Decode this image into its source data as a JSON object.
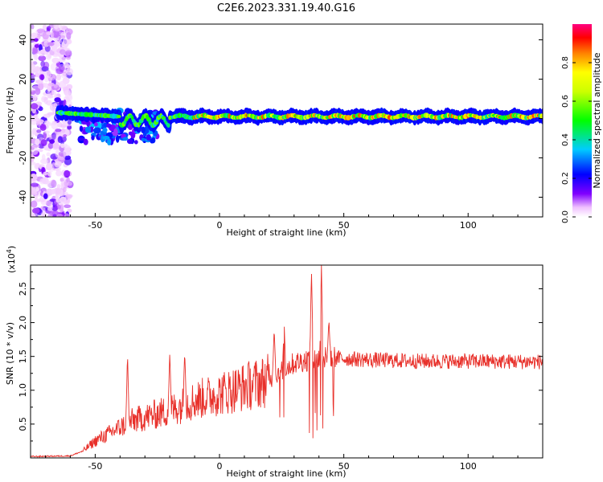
{
  "title": "C2E6.2023.331.19.40.G16",
  "chart_data": [
    {
      "type": "heatmap",
      "xlabel": "Height of straight line (km)",
      "ylabel": "Frequency (Hz)",
      "xlim": [
        -76,
        130
      ],
      "ylim": [
        -50,
        48
      ],
      "xticks": [
        -50,
        0,
        50,
        100
      ],
      "yticks": [
        -40,
        -20,
        0,
        20,
        40
      ],
      "colorbar": {
        "label": "Normalized spectral amplitude",
        "range": [
          0,
          1
        ],
        "ticks": [
          "0.0",
          "0.2",
          "0.4",
          "0.6",
          "0.8"
        ]
      },
      "ridge": {
        "frequency_hz": 1,
        "start_x": -65,
        "noise_region_x": [
          -76,
          -60
        ],
        "disturbed_region_x": [
          -45,
          -25
        ],
        "disturbed_frequency_range_hz": [
          -12,
          4
        ]
      }
    },
    {
      "type": "line",
      "xlabel": "Height of straight line (km)",
      "ylabel": "SNR (10 * v/v)",
      "yscale_label": "(x10",
      "yscale_exp": "4",
      "xlim": [
        -76,
        130
      ],
      "ylim": [
        0,
        2.85
      ],
      "xticks": [
        -50,
        0,
        50,
        100
      ],
      "yticks": [
        "0.5",
        "1.0",
        "1.5",
        "2.0",
        "2.5"
      ],
      "color": "#e8302a",
      "envelope": [
        [
          -76,
          0.02
        ],
        [
          -60,
          0.03
        ],
        [
          -55,
          0.1
        ],
        [
          -50,
          0.25
        ],
        [
          -45,
          0.35
        ],
        [
          -40,
          0.45
        ],
        [
          -35,
          0.55
        ],
        [
          -30,
          0.6
        ],
        [
          -25,
          0.65
        ],
        [
          -20,
          0.7
        ],
        [
          -15,
          0.78
        ],
        [
          -10,
          0.85
        ],
        [
          -5,
          0.9
        ],
        [
          0,
          0.95
        ],
        [
          5,
          1.0
        ],
        [
          10,
          1.05
        ],
        [
          15,
          1.1
        ],
        [
          20,
          1.15
        ],
        [
          25,
          1.3
        ],
        [
          30,
          1.4
        ],
        [
          35,
          1.45
        ],
        [
          45,
          1.48
        ],
        [
          50,
          1.47
        ],
        [
          60,
          1.45
        ],
        [
          80,
          1.43
        ],
        [
          100,
          1.43
        ],
        [
          130,
          1.42
        ]
      ],
      "peaks": [
        [
          -37,
          1.55
        ],
        [
          -20,
          1.55
        ],
        [
          -14,
          1.58
        ],
        [
          22,
          1.92
        ],
        [
          26,
          2.0
        ],
        [
          37,
          2.8
        ],
        [
          41,
          2.85
        ],
        [
          44,
          2.05
        ]
      ]
    }
  ]
}
